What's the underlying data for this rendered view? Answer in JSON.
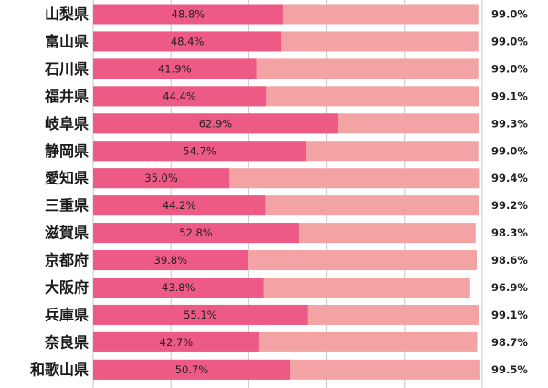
{
  "chart_data": {
    "type": "bar",
    "orientation": "horizontal",
    "stacked": "overlay",
    "categories": [
      "山梨県",
      "富山県",
      "石川県",
      "福井県",
      "岐阜県",
      "静岡県",
      "愛知県",
      "三重県",
      "滋賀県",
      "京都府",
      "大阪府",
      "兵庫県",
      "奈良県",
      "和歌山県"
    ],
    "series": [
      {
        "name": "inner",
        "values": [
          48.8,
          48.4,
          41.9,
          44.4,
          62.9,
          54.7,
          35.0,
          44.2,
          52.8,
          39.8,
          43.8,
          55.1,
          42.7,
          50.7
        ],
        "labels": [
          "48.8%",
          "48.4%",
          "41.9%",
          "44.4%",
          "62.9%",
          "54.7%",
          "35.0%",
          "44.2%",
          "52.8%",
          "39.8%",
          "43.8%",
          "55.1%",
          "42.7%",
          "50.7%"
        ]
      },
      {
        "name": "total",
        "values": [
          99.0,
          99.0,
          99.0,
          99.1,
          99.3,
          99.0,
          99.4,
          99.2,
          98.3,
          98.6,
          96.9,
          99.1,
          98.7,
          99.5
        ],
        "labels": [
          "99.0%",
          "99.0%",
          "99.0%",
          "99.1%",
          "99.3%",
          "99.0%",
          "99.4%",
          "99.2%",
          "98.3%",
          "98.6%",
          "96.9%",
          "99.1%",
          "98.7%",
          "99.5%"
        ]
      }
    ],
    "xlim": [
      0,
      100
    ],
    "grid": true,
    "colors": {
      "inner": "#ee5a86",
      "total": "#f4a3a4",
      "grid": "#c8c8c8"
    }
  }
}
